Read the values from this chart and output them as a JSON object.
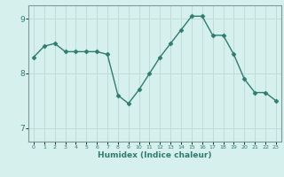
{
  "x": [
    0,
    1,
    2,
    3,
    4,
    5,
    6,
    7,
    8,
    9,
    10,
    11,
    12,
    13,
    14,
    15,
    16,
    17,
    18,
    19,
    20,
    21,
    22,
    23
  ],
  "y": [
    8.3,
    8.5,
    8.55,
    8.4,
    8.4,
    8.4,
    8.4,
    8.35,
    7.6,
    7.45,
    7.7,
    8.0,
    8.3,
    8.55,
    8.8,
    9.05,
    9.05,
    8.7,
    8.7,
    8.35,
    7.9,
    7.65,
    7.65,
    7.5
  ],
  "line_color": "#2e7d6e",
  "marker": "D",
  "marker_size": 2.5,
  "bg_color": "#d6f0ee",
  "grid_color": "#c0dbd8",
  "xlabel": "Humidex (Indice chaleur)",
  "ylim": [
    6.75,
    9.25
  ],
  "xlim": [
    -0.5,
    23.5
  ],
  "yticks": [
    7,
    8,
    9
  ],
  "xticks": [
    0,
    1,
    2,
    3,
    4,
    5,
    6,
    7,
    8,
    9,
    10,
    11,
    12,
    13,
    14,
    15,
    16,
    17,
    18,
    19,
    20,
    21,
    22,
    23
  ],
  "tick_color": "#2e7d6e",
  "axis_color": "#7a9a98",
  "xlabel_color": "#2e7d6e"
}
